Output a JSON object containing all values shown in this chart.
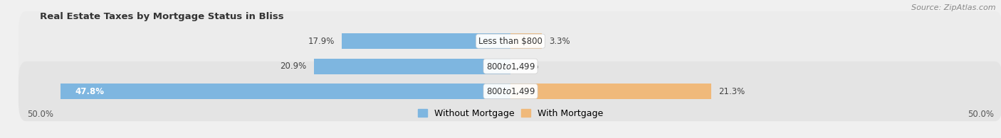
{
  "title": "Real Estate Taxes by Mortgage Status in Bliss",
  "source": "Source: ZipAtlas.com",
  "rows": [
    {
      "label": "Less than $800",
      "without_mortgage": 17.9,
      "with_mortgage": 3.3,
      "wo_label_inside": false
    },
    {
      "label": "$800 to $1,499",
      "without_mortgage": 20.9,
      "with_mortgage": 0.0,
      "wo_label_inside": false
    },
    {
      "label": "$800 to $1,499",
      "without_mortgage": 47.8,
      "with_mortgage": 21.3,
      "wo_label_inside": true
    }
  ],
  "x_max": 50.0,
  "x_min": -50.0,
  "color_without": "#7EB6E0",
  "color_with": "#F0B97A",
  "bar_height": 0.62,
  "row_bg_even": "#ECECEC",
  "row_bg_odd": "#E4E4E4",
  "title_fontsize": 9.5,
  "bar_label_fontsize": 8.5,
  "axis_label_fontsize": 8.5,
  "legend_fontsize": 9,
  "source_fontsize": 8,
  "bg_color": "#F0F0F0"
}
